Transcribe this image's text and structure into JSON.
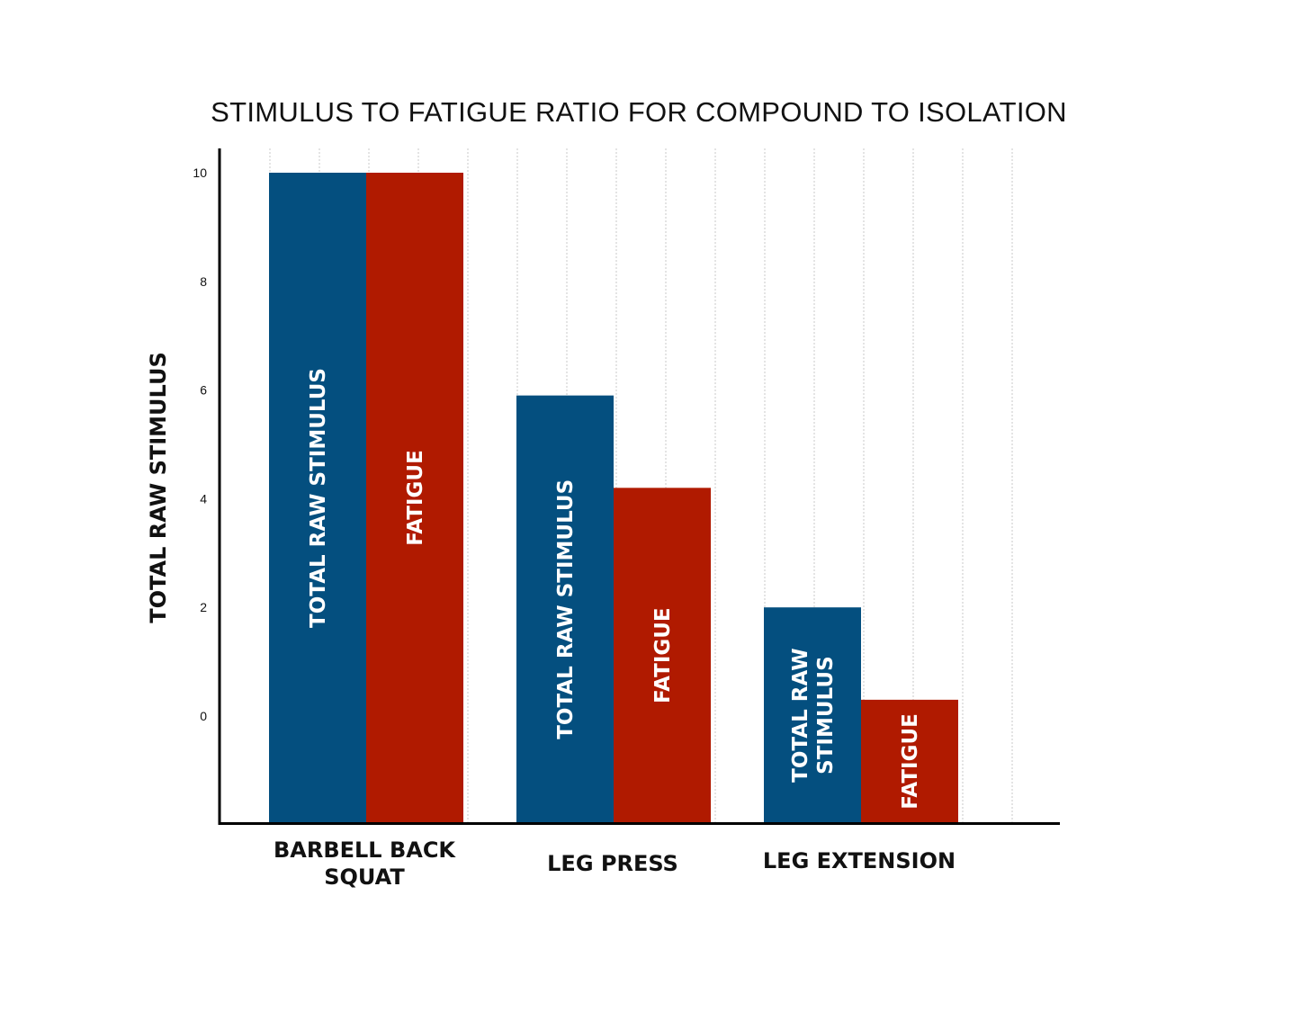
{
  "chart_data": {
    "type": "bar",
    "title": "STIMULUS TO FATIGUE RATIO FOR COMPOUND TO ISOLATION",
    "ylabel": "TOTAL RAW STIMULUS",
    "xlabel": "",
    "ylim": [
      -2,
      10.4
    ],
    "yticks": [
      "0",
      "2",
      "4",
      "6",
      "8",
      "10"
    ],
    "categories": [
      [
        "BARBELL BACK",
        "SQUAT"
      ],
      [
        "LEG PRESS"
      ],
      [
        "LEG EXTENSION"
      ]
    ],
    "series": [
      {
        "color": "#044f7f",
        "values": [
          10,
          5.9,
          2.0
        ],
        "labels": [
          [
            "TOTAL RAW STIMULUS"
          ],
          [
            "TOTAL RAW STIMULUS"
          ],
          [
            "TOTAL RAW",
            "STIMULUS"
          ]
        ]
      },
      {
        "color": "#b01a00",
        "values": [
          10,
          4.2,
          0.3
        ],
        "labels": [
          [
            "FATIGUE"
          ],
          [
            "FATIGUE"
          ],
          [
            "FATIGUE"
          ]
        ]
      }
    ],
    "grid": true,
    "legend": "none"
  }
}
